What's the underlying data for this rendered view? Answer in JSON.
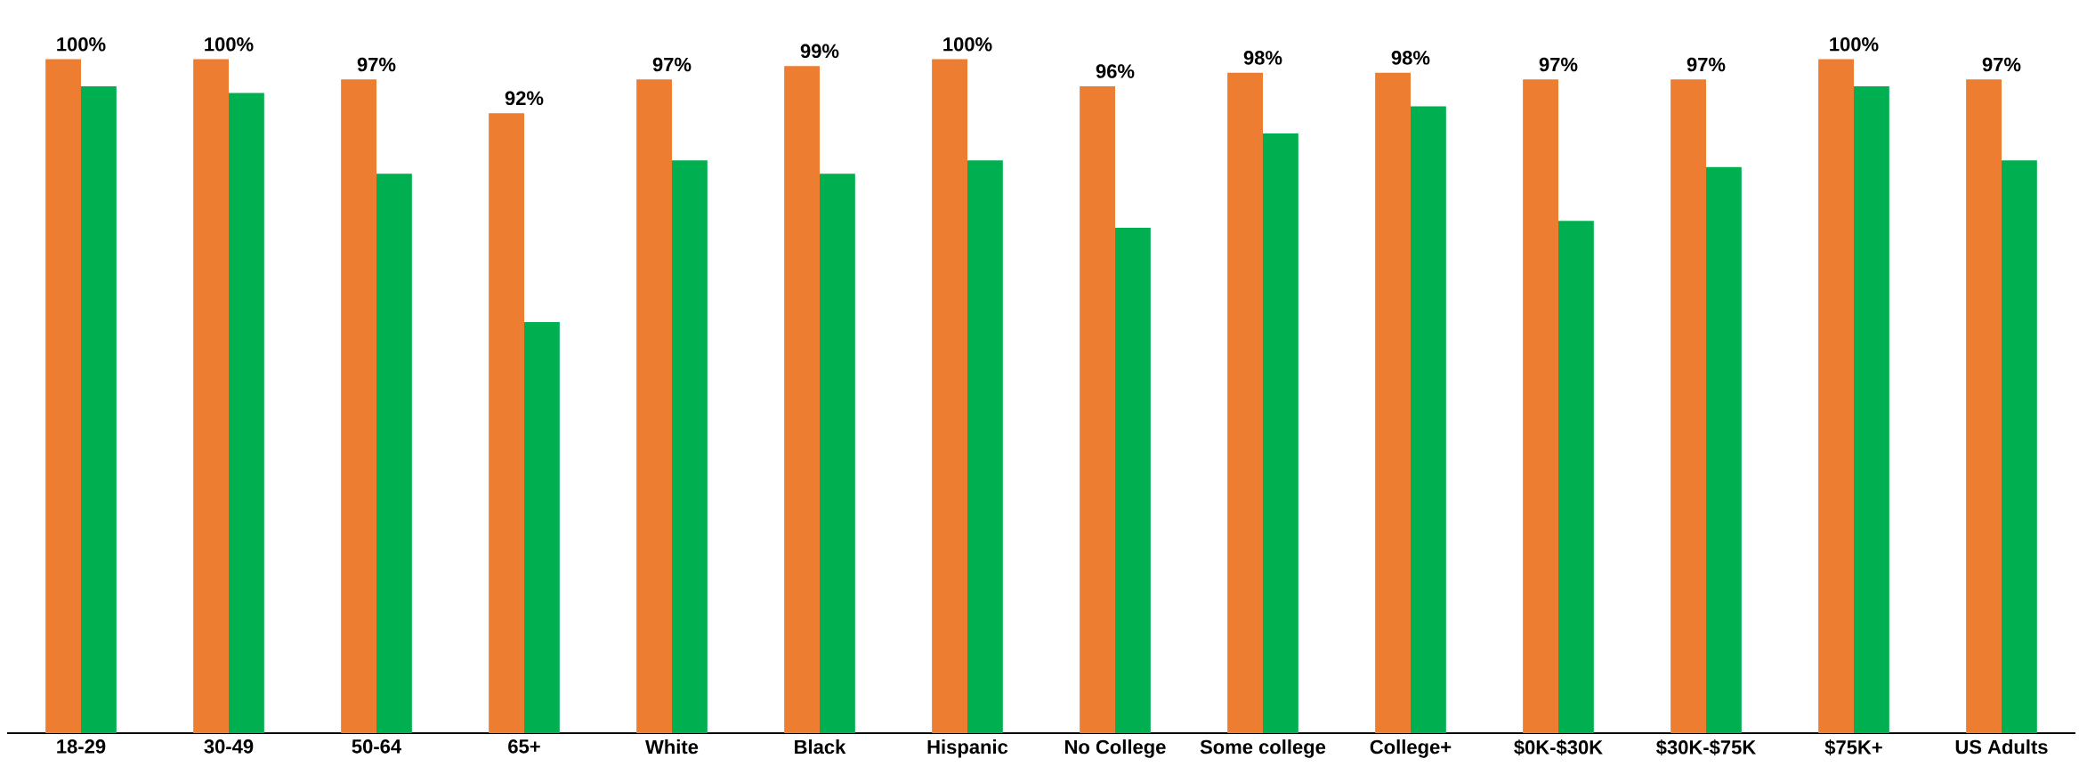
{
  "chart_data": {
    "type": "bar",
    "categories": [
      "18-29",
      "30-49",
      "50-64",
      "65+",
      "White",
      "Black",
      "Hispanic",
      "No College",
      "Some college",
      "College+",
      "$0K-$30K",
      "$30K-$75K",
      "$75K+",
      "US Adults"
    ],
    "series": [
      {
        "color": "#ed7d31",
        "values": [
          100,
          100,
          97,
          92,
          97,
          99,
          100,
          96,
          98,
          98,
          97,
          97,
          100,
          97
        ],
        "value_labels": [
          "100%",
          "100%",
          "97%",
          "92%",
          "97%",
          "99%",
          "100%",
          "96%",
          "98%",
          "98%",
          "97%",
          "97%",
          "100%",
          "97%"
        ]
      },
      {
        "color": "#00b050",
        "values": [
          96,
          95,
          83,
          61,
          85,
          83,
          85,
          75,
          89,
          93,
          76,
          84,
          96,
          85
        ]
      }
    ]
  }
}
